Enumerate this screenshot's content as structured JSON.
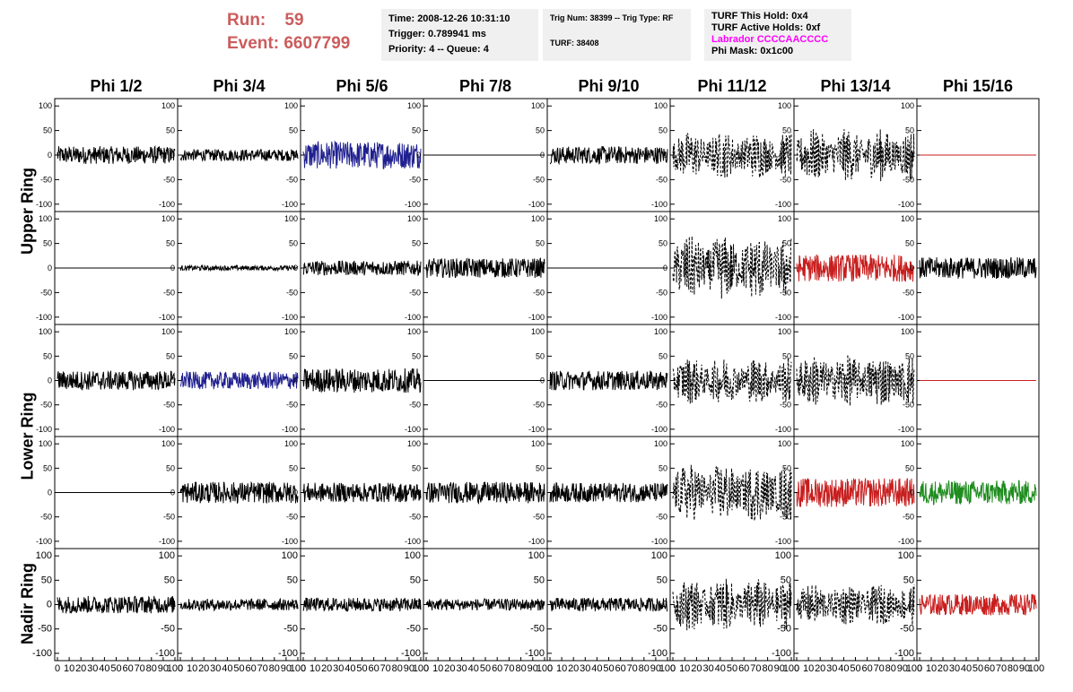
{
  "run_info": {
    "run_label": "Run:",
    "run_value": "59",
    "event_label": "Event:",
    "event_value": "6607799"
  },
  "time_box": {
    "time": "Time: 2008-12-26 10:31:10",
    "trigger": "Trigger: 0.789941 ms",
    "priority": "Priority: 4 -- Queue: 4"
  },
  "trig_box": {
    "trig": "Trig Num: 38399 -- Trig Type: RF",
    "turf": "TURF: 38408"
  },
  "turf_box": {
    "this_hold": "TURF This Hold: 0x4",
    "active_holds": "TURF Active Holds: 0xf",
    "labrador": "Labrador CCCCAACCCC",
    "phi_mask": "Phi Mask: 0x1c00"
  },
  "colors": {
    "run_text": "#cc5c5c",
    "black": "#000000",
    "blue": "#1f1f8f",
    "red": "#c81e1e",
    "green": "#1e8c1e",
    "magenta": "#ff00ff"
  },
  "chart_data": {
    "type": "line",
    "description_rows": [
      "Upper Ring",
      "Upper Ring",
      "Lower Ring",
      "Lower Ring",
      "Nadir Ring"
    ],
    "columns": [
      "Phi 1/2",
      "Phi 3/4",
      "Phi 5/6",
      "Phi 7/8",
      "Phi 9/10",
      "Phi 11/12",
      "Phi 13/14",
      "Phi 15/16"
    ],
    "row_labels": [
      "Upper Ring",
      "Lower Ring",
      "Nadir Ring"
    ],
    "xlim": [
      0,
      100
    ],
    "ylim": [
      -115,
      115
    ],
    "x_ticks": [
      "0",
      "10",
      "20",
      "30",
      "40",
      "50",
      "60",
      "70",
      "80",
      "90",
      "100"
    ],
    "y_ticks_small": [
      "100",
      "50",
      "0",
      "-50",
      "-100"
    ],
    "y_ticks_nadir": [
      "100",
      "50",
      "0",
      "-50",
      "-100"
    ],
    "panels": [
      [
        {
          "style": "solid",
          "color": "black",
          "amp": 18
        },
        {
          "style": "solid",
          "color": "black",
          "amp": 12
        },
        {
          "style": "solid",
          "color": "blue",
          "amp": 28
        },
        {
          "style": "flat",
          "color": "black",
          "amp": 0
        },
        {
          "style": "solid",
          "color": "black",
          "amp": 18
        },
        {
          "style": "dashed",
          "color": "black",
          "amp": 40
        },
        {
          "style": "dashed",
          "color": "black",
          "amp": 45
        },
        {
          "style": "flat",
          "color": "red",
          "amp": 0
        }
      ],
      [
        {
          "style": "flat",
          "color": "black",
          "amp": 0
        },
        {
          "style": "solid",
          "color": "black",
          "amp": 5
        },
        {
          "style": "solid",
          "color": "black",
          "amp": 15
        },
        {
          "style": "solid",
          "color": "black",
          "amp": 20
        },
        {
          "style": "flat",
          "color": "black",
          "amp": 0
        },
        {
          "style": "dashed",
          "color": "black",
          "amp": 55
        },
        {
          "style": "solid",
          "color": "red",
          "amp": 28
        },
        {
          "style": "solid",
          "color": "black",
          "amp": 22
        }
      ],
      [
        {
          "style": "solid",
          "color": "black",
          "amp": 20
        },
        {
          "style": "solid",
          "color": "blue",
          "amp": 18
        },
        {
          "style": "solid",
          "color": "black",
          "amp": 25
        },
        {
          "style": "flat",
          "color": "black",
          "amp": 0
        },
        {
          "style": "solid",
          "color": "black",
          "amp": 20
        },
        {
          "style": "dashed",
          "color": "black",
          "amp": 40
        },
        {
          "style": "dashed",
          "color": "black",
          "amp": 45
        },
        {
          "style": "flat",
          "color": "red",
          "amp": 0
        }
      ],
      [
        {
          "style": "flat",
          "color": "black",
          "amp": 0
        },
        {
          "style": "solid",
          "color": "black",
          "amp": 22
        },
        {
          "style": "solid",
          "color": "black",
          "amp": 20
        },
        {
          "style": "solid",
          "color": "black",
          "amp": 22
        },
        {
          "style": "solid",
          "color": "black",
          "amp": 20
        },
        {
          "style": "dashed",
          "color": "black",
          "amp": 50
        },
        {
          "style": "solid",
          "color": "red",
          "amp": 30
        },
        {
          "style": "solid",
          "color": "green",
          "amp": 25
        }
      ],
      [
        {
          "style": "solid",
          "color": "black",
          "amp": 18
        },
        {
          "style": "solid",
          "color": "black",
          "amp": 12
        },
        {
          "style": "solid",
          "color": "black",
          "amp": 14
        },
        {
          "style": "solid",
          "color": "black",
          "amp": 12
        },
        {
          "style": "solid",
          "color": "black",
          "amp": 14
        },
        {
          "style": "dashed",
          "color": "black",
          "amp": 45
        },
        {
          "style": "dashed",
          "color": "black",
          "amp": 35
        },
        {
          "style": "solid",
          "color": "red",
          "amp": 22
        }
      ]
    ]
  }
}
